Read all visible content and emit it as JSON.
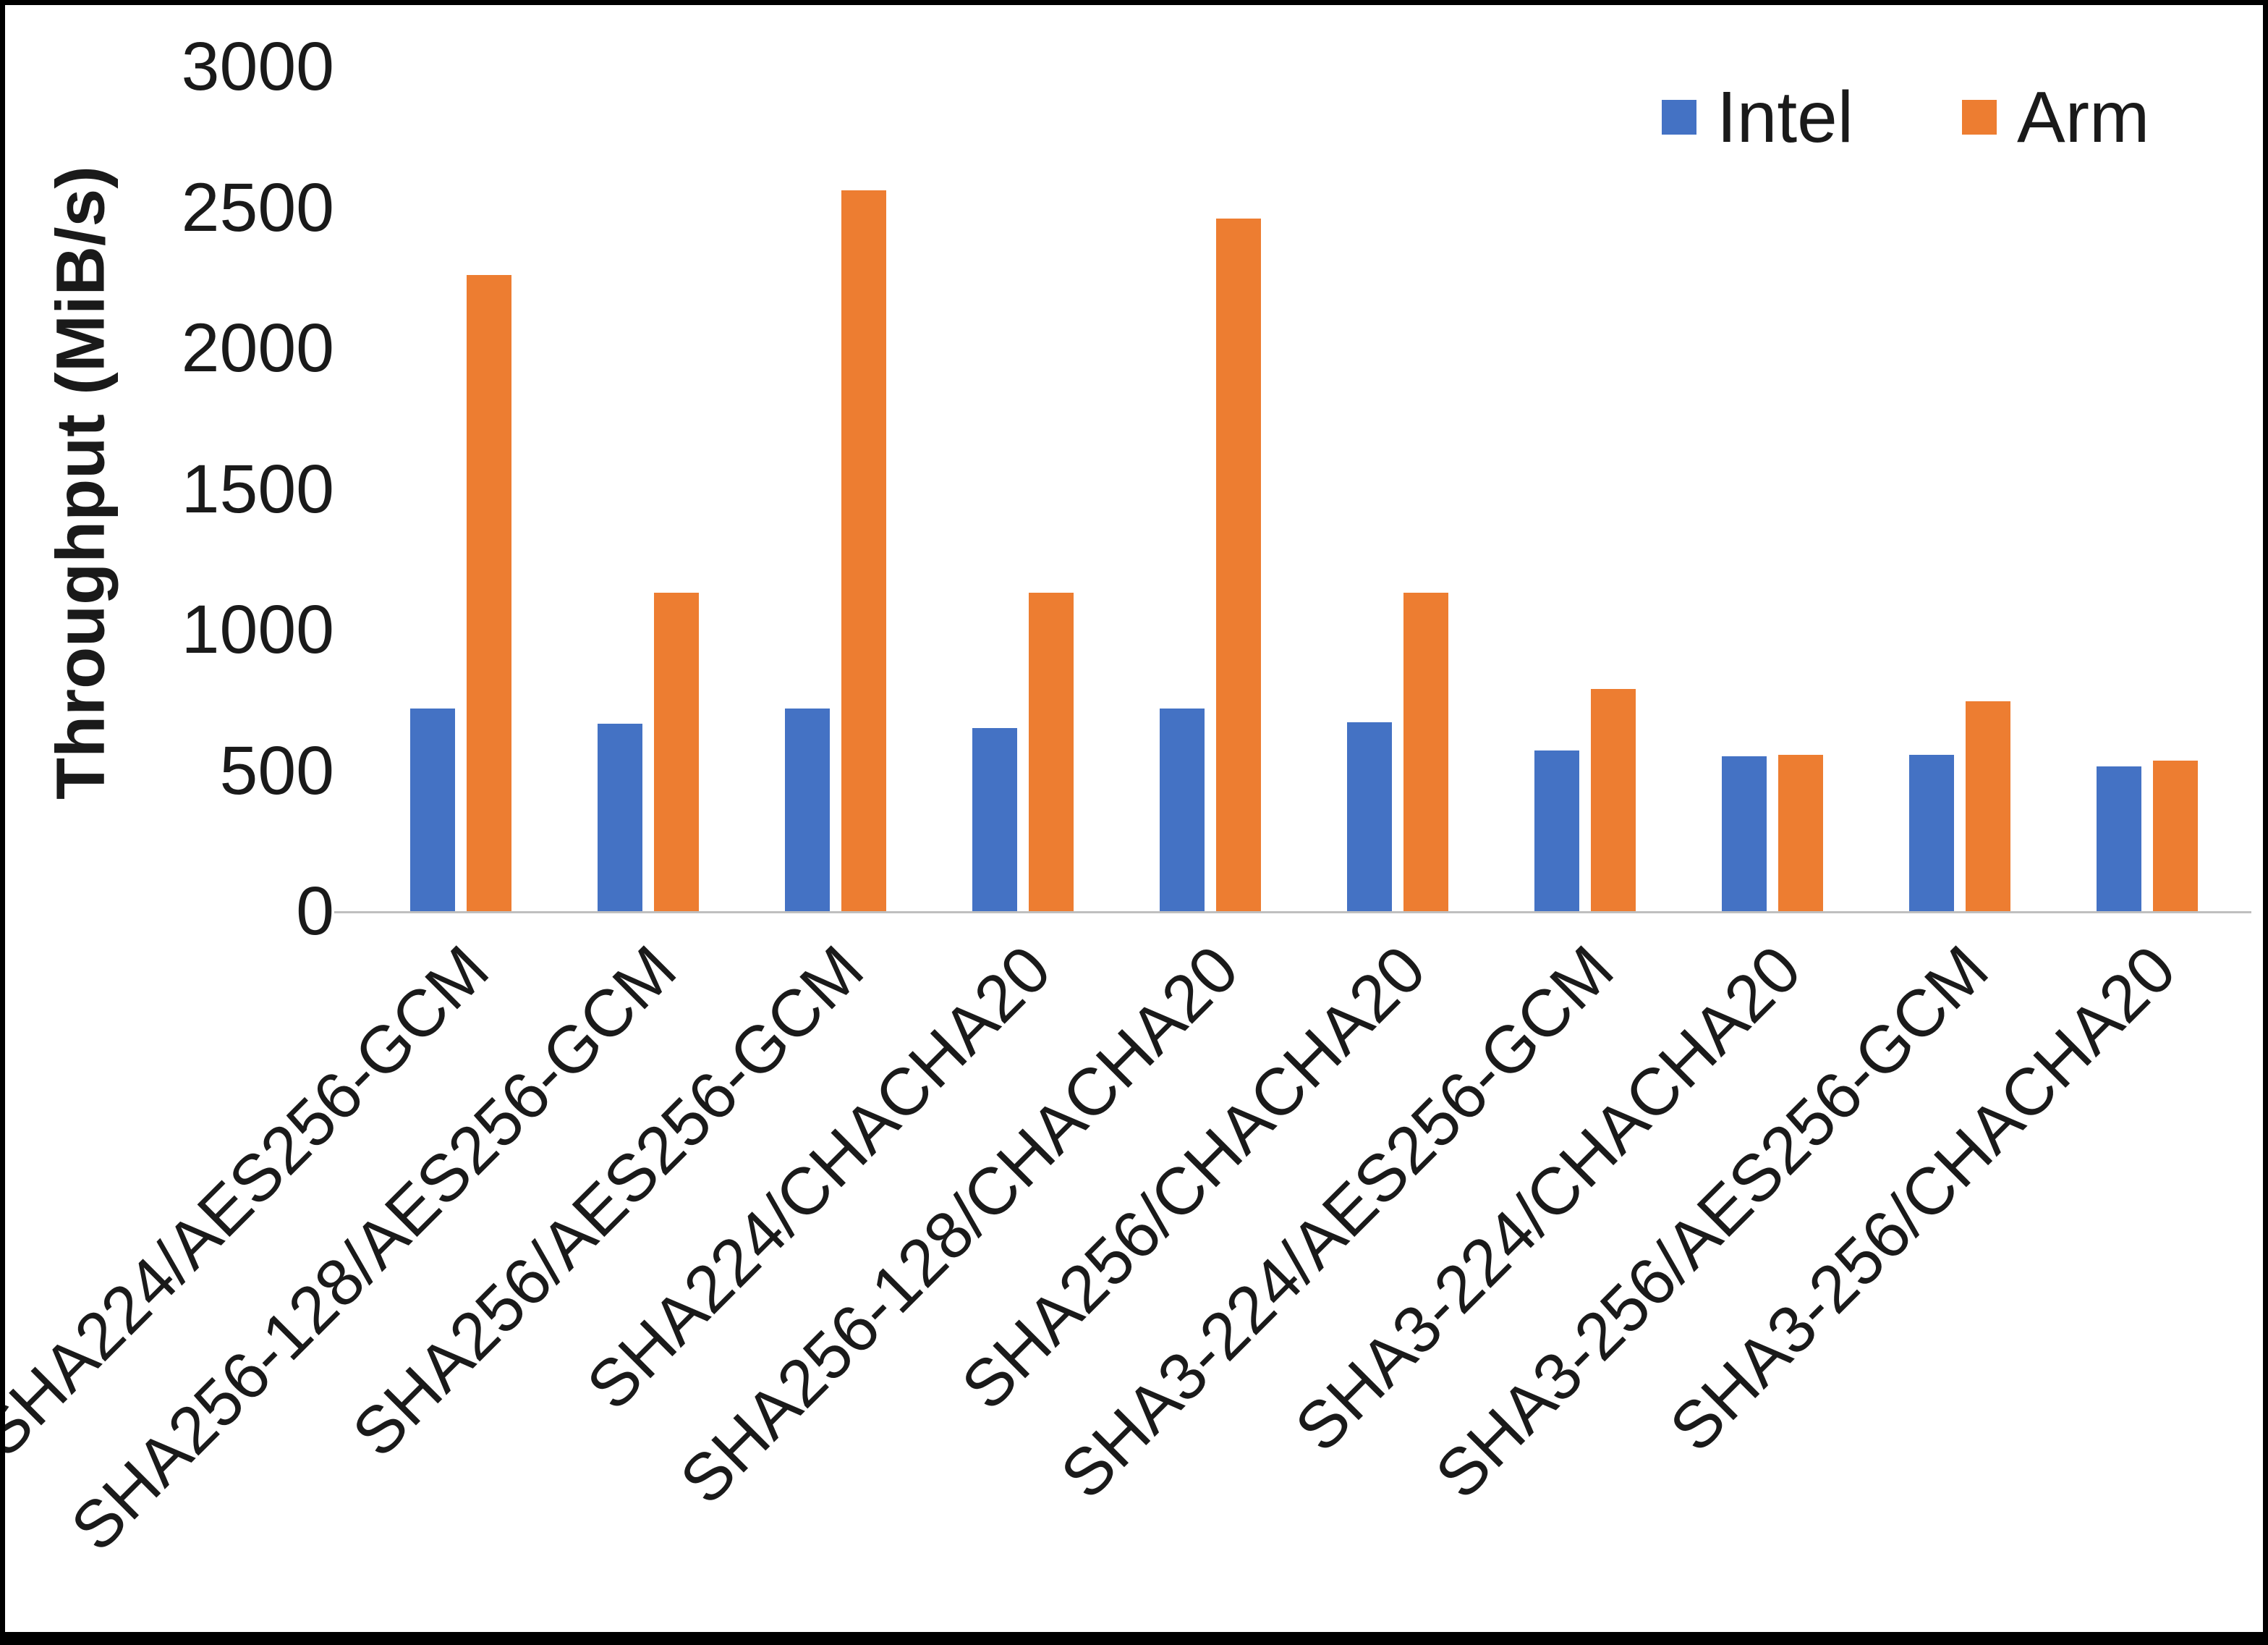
{
  "page": {
    "background": "#ffffff",
    "frame_border_color": "#000000",
    "axis_line_color": "#bfbfbf",
    "text_color": "#1a1a1a"
  },
  "chart_data": {
    "type": "bar",
    "title": "",
    "xlabel": "",
    "ylabel": "Throughput (MiB/s)",
    "ylim": [
      0,
      3000
    ],
    "yticks": [
      0,
      500,
      1000,
      1500,
      2000,
      2500,
      3000
    ],
    "grid": false,
    "legend_position": "top-right",
    "categories": [
      "SHA224/AES256-GCM",
      "SHA256-128/AES256-GCM",
      "SHA256/AES256-GCM",
      "SHA224/CHACHA20",
      "SHA256-128/CHACHA20",
      "SHA256/CHACHA20",
      "SHA3-224/AES256-GCM",
      "SHA3-224/CHACHA20",
      "SHA3-256/AES256-GCM",
      "SHA3-256/CHACHA20"
    ],
    "series": [
      {
        "name": "Intel",
        "color": "#4472C4",
        "values": [
          720,
          665,
          720,
          650,
          720,
          670,
          570,
          550,
          555,
          515
        ]
      },
      {
        "name": "Arm",
        "color": "#ED7D31",
        "values": [
          2260,
          1130,
          2560,
          1130,
          2460,
          1130,
          790,
          555,
          745,
          535
        ]
      }
    ]
  }
}
